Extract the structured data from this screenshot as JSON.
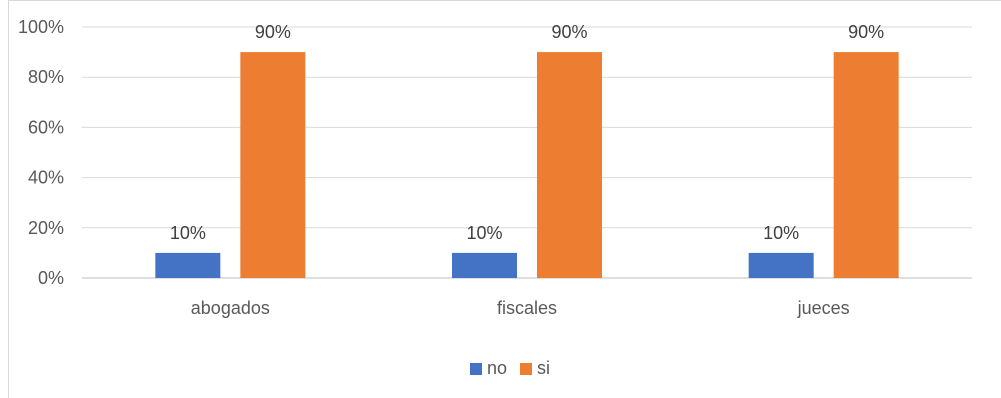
{
  "chart_data": {
    "type": "bar",
    "categories": [
      "abogados",
      "fiscales",
      "jueces"
    ],
    "series": [
      {
        "name": "no",
        "values": [
          10,
          10,
          10
        ],
        "color": "#4472c4"
      },
      {
        "name": "si",
        "values": [
          90,
          90,
          90
        ],
        "color": "#ed7d31"
      }
    ],
    "data_labels": [
      [
        "10%",
        "10%",
        "10%"
      ],
      [
        "90%",
        "90%",
        "90%"
      ]
    ],
    "ylim": [
      0,
      100
    ],
    "yticks": [
      0,
      20,
      40,
      60,
      80,
      100
    ],
    "ytick_labels": [
      "0%",
      "20%",
      "40%",
      "60%",
      "80%",
      "100%"
    ],
    "title": "",
    "xlabel": "",
    "ylabel": "",
    "grid": true,
    "legend_position": "bottom"
  }
}
